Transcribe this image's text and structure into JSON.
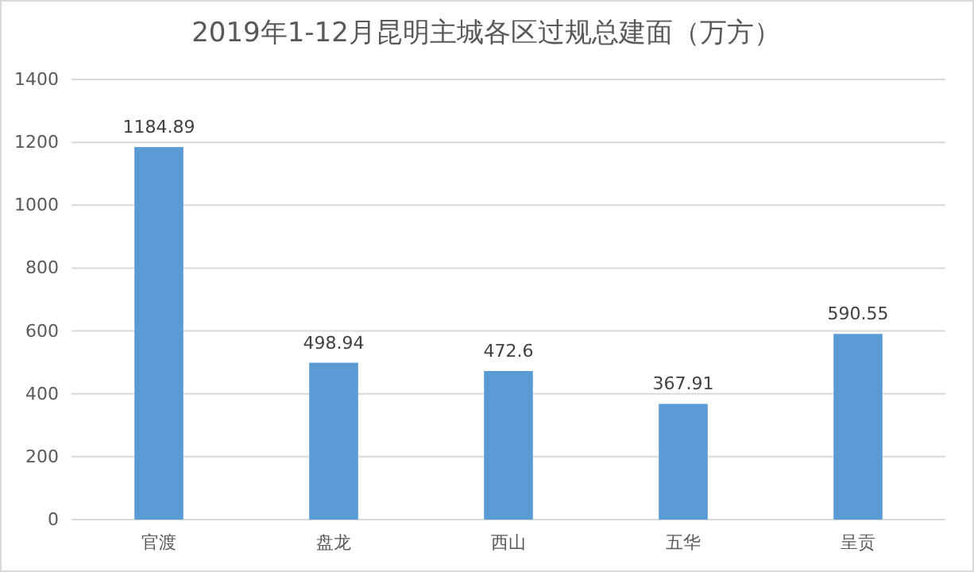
{
  "chart_data": {
    "type": "bar",
    "title": "2019年1-12月昆明主城各区过规总建面（万方）",
    "categories": [
      "官渡",
      "盘龙",
      "西山",
      "五华",
      "呈贡"
    ],
    "values": [
      1184.89,
      498.94,
      472.6,
      367.91,
      590.55
    ],
    "color": "#5b9bd5",
    "ylim": [
      0,
      1400
    ],
    "yticks": [
      0,
      200,
      400,
      600,
      800,
      1000,
      1200,
      1400
    ],
    "grid": "y",
    "data_labels": true
  }
}
